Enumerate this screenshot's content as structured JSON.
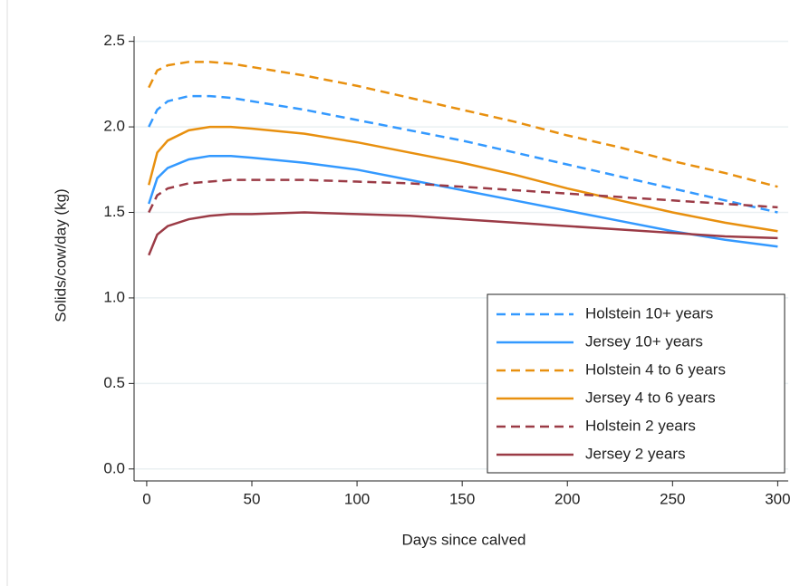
{
  "chart_data": {
    "type": "line",
    "xlabel": "Days since calved",
    "ylabel": "Solids/cow/day (kg)",
    "x": [
      1,
      5,
      10,
      20,
      30,
      40,
      50,
      75,
      100,
      125,
      150,
      175,
      200,
      225,
      250,
      275,
      300
    ],
    "series": [
      {
        "name": "Holstein 10+ years",
        "color": "#3399ff",
        "dashed": true,
        "values": [
          2.0,
          2.1,
          2.15,
          2.18,
          2.18,
          2.17,
          2.15,
          2.1,
          2.04,
          1.98,
          1.92,
          1.85,
          1.78,
          1.71,
          1.64,
          1.57,
          1.5
        ]
      },
      {
        "name": "Jersey 10+ years",
        "color": "#3399ff",
        "dashed": false,
        "values": [
          1.55,
          1.7,
          1.76,
          1.81,
          1.83,
          1.83,
          1.82,
          1.79,
          1.75,
          1.69,
          1.63,
          1.57,
          1.51,
          1.45,
          1.39,
          1.34,
          1.3
        ]
      },
      {
        "name": "Holstein 4 to 6 years",
        "color": "#e8900f",
        "dashed": true,
        "values": [
          2.23,
          2.33,
          2.36,
          2.38,
          2.38,
          2.37,
          2.35,
          2.3,
          2.24,
          2.17,
          2.1,
          2.03,
          1.95,
          1.88,
          1.8,
          1.73,
          1.65
        ]
      },
      {
        "name": "Jersey 4 to 6 years",
        "color": "#e8900f",
        "dashed": false,
        "values": [
          1.66,
          1.85,
          1.92,
          1.98,
          2.0,
          2.0,
          1.99,
          1.96,
          1.91,
          1.85,
          1.79,
          1.72,
          1.64,
          1.57,
          1.5,
          1.44,
          1.39
        ]
      },
      {
        "name": "Holstein 2 years",
        "color": "#9b3b46",
        "dashed": true,
        "values": [
          1.5,
          1.6,
          1.64,
          1.67,
          1.68,
          1.69,
          1.69,
          1.69,
          1.68,
          1.67,
          1.65,
          1.63,
          1.61,
          1.59,
          1.57,
          1.55,
          1.53
        ]
      },
      {
        "name": "Jersey 2 years",
        "color": "#9b3b46",
        "dashed": false,
        "values": [
          1.25,
          1.37,
          1.42,
          1.46,
          1.48,
          1.49,
          1.49,
          1.5,
          1.49,
          1.48,
          1.46,
          1.44,
          1.42,
          1.4,
          1.38,
          1.36,
          1.35
        ]
      }
    ],
    "xlim": [
      -6,
      305
    ],
    "ylim": [
      -0.07,
      2.53
    ],
    "xticks": [
      0,
      50,
      100,
      150,
      200,
      250,
      300
    ],
    "yticks": [
      {
        "value": 0,
        "label": "0.0"
      },
      0.5,
      {
        "value": 1,
        "label": "1.0"
      },
      1.5,
      {
        "value": 2,
        "label": "2.0"
      },
      2.5
    ],
    "grid": true,
    "legend": "lower right"
  }
}
